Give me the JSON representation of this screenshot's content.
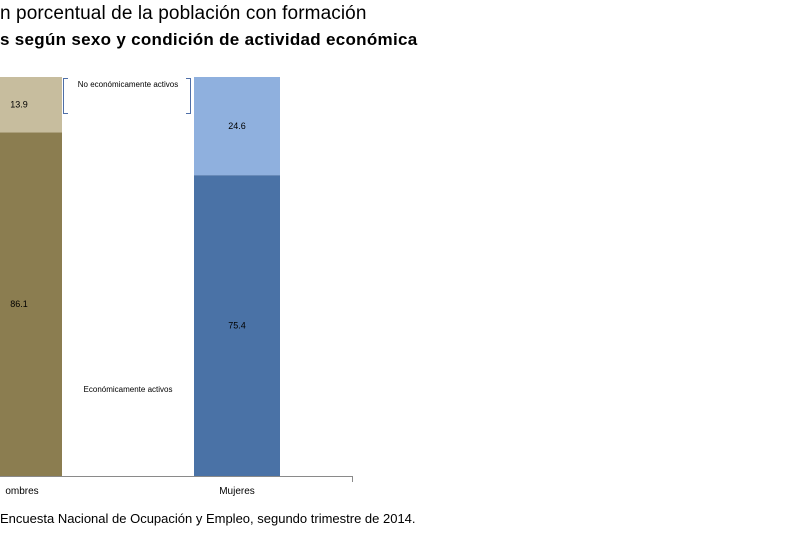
{
  "title": {
    "line1": "n porcentual de la población con formación",
    "line2": "s según sexo y condición de actividad económica"
  },
  "chart_data": {
    "type": "bar",
    "stacked": true,
    "categories": [
      "ombres",
      "Mujeres"
    ],
    "series": [
      {
        "name": "Económicamente activos",
        "values": [
          86.1,
          75.4
        ],
        "colors": [
          "#8b7d50",
          "#4a72a6"
        ],
        "labels": [
          "86.1",
          "75.4"
        ]
      },
      {
        "name": "No económicamente activos",
        "values": [
          13.9,
          24.6
        ],
        "colors": [
          "#c7bd9e",
          "#8fb0de"
        ],
        "labels": [
          "13.9",
          "24.6"
        ]
      }
    ],
    "ylim": [
      0,
      100
    ],
    "annotations": [
      {
        "id": "noeco",
        "text": "No económicamente activos"
      },
      {
        "id": "eco",
        "text": "Económicamente activos"
      }
    ]
  },
  "source": "Encuesta Nacional de Ocupación y Empleo, segundo trimestre de 2014."
}
